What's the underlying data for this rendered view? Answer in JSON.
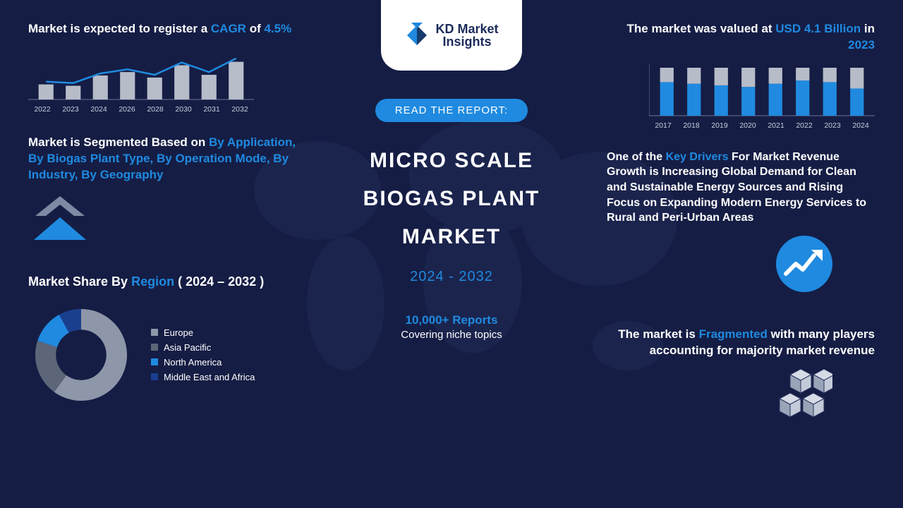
{
  "colors": {
    "background": "#151d44",
    "accent": "#1f8ae0",
    "text": "#ffffff",
    "muted_bar": "#b7bcc9",
    "grid": "#6c7499",
    "donut_base": "#8e97a9"
  },
  "logo": {
    "line1": "KD Market",
    "line2": "Insights",
    "mark_colors": [
      "#1f8ae0",
      "#163a6b"
    ]
  },
  "center": {
    "pill_label": "READ THE REPORT:",
    "pill_bg": "#1f8ae0",
    "title_l1": "MICRO SCALE",
    "title_l2": "BIOGAS PLANT",
    "title_l3": "MARKET",
    "title_fontsize": 30,
    "years": "2024 - 2032",
    "reports": "10,000+ Reports",
    "covering": "Covering niche topics"
  },
  "left": {
    "cagr_text_a": "Market is expected to register a ",
    "cagr_text_b": "CAGR",
    "cagr_text_c": " of ",
    "cagr_value": "4.5%",
    "combo_chart": {
      "type": "bar+line",
      "x": [
        "2022",
        "2023",
        "2024",
        "2026",
        "2028",
        "2030",
        "2031",
        "2032"
      ],
      "bars": [
        22,
        20,
        35,
        40,
        32,
        50,
        36,
        55
      ],
      "line": [
        26,
        24,
        38,
        44,
        36,
        54,
        40,
        60
      ],
      "bar_color": "#b7bcc9",
      "line_color": "#1f8ae0",
      "xlim": [
        0,
        8
      ],
      "ylim": [
        0,
        70
      ],
      "bar_width": 0.55,
      "label_fontsize": 10.5
    },
    "seg_a": "Market is Segmented Based on ",
    "seg_b": "By Application, By Biogas Plant Type, By Operation Mode, By Industry, By Geography",
    "region_a": "Market Share By ",
    "region_b": "Region",
    "region_c": " ( 2024 – 2032 )",
    "donut": {
      "type": "pie",
      "slices": [
        {
          "label": "Europe",
          "value": 60,
          "color": "#8e97a9"
        },
        {
          "label": "Asia Pacific",
          "value": 20,
          "color": "#5d6678"
        },
        {
          "label": "North America",
          "value": 12,
          "color": "#1f8ae0"
        },
        {
          "label": "Middle East and Africa",
          "value": 8,
          "color": "#1a3f8f"
        }
      ],
      "inner_radius": 0.55,
      "background_color": "#151d44"
    }
  },
  "right": {
    "val_a": "The market was valued at ",
    "val_b": "USD 4.1 Billion",
    "val_c": " in ",
    "val_d": "2023",
    "bar_chart": {
      "type": "bar",
      "x": [
        "2017",
        "2018",
        "2019",
        "2020",
        "2021",
        "2022",
        "2023",
        "2024"
      ],
      "total": 60,
      "blue": [
        42,
        40,
        38,
        36,
        40,
        44,
        42,
        34
      ],
      "bar_color_top": "#b7bcc9",
      "bar_color_bottom": "#1f8ae0",
      "ylim": [
        0,
        60
      ],
      "bar_width": 0.5,
      "label_fontsize": 10.5
    },
    "driver_a": "One of the ",
    "driver_b": "Key Drivers",
    "driver_c": " For Market Revenue Growth is Increasing Global Demand for Clean and Sustainable Energy Sources and Rising Focus on Expanding Modern Energy Services to Rural and Peri-Urban Areas",
    "trend_badge_color": "#1f8ae0",
    "frag_a": "The market is ",
    "frag_b": "Fragmented",
    "frag_c": " with many players accounting for majority market revenue"
  }
}
